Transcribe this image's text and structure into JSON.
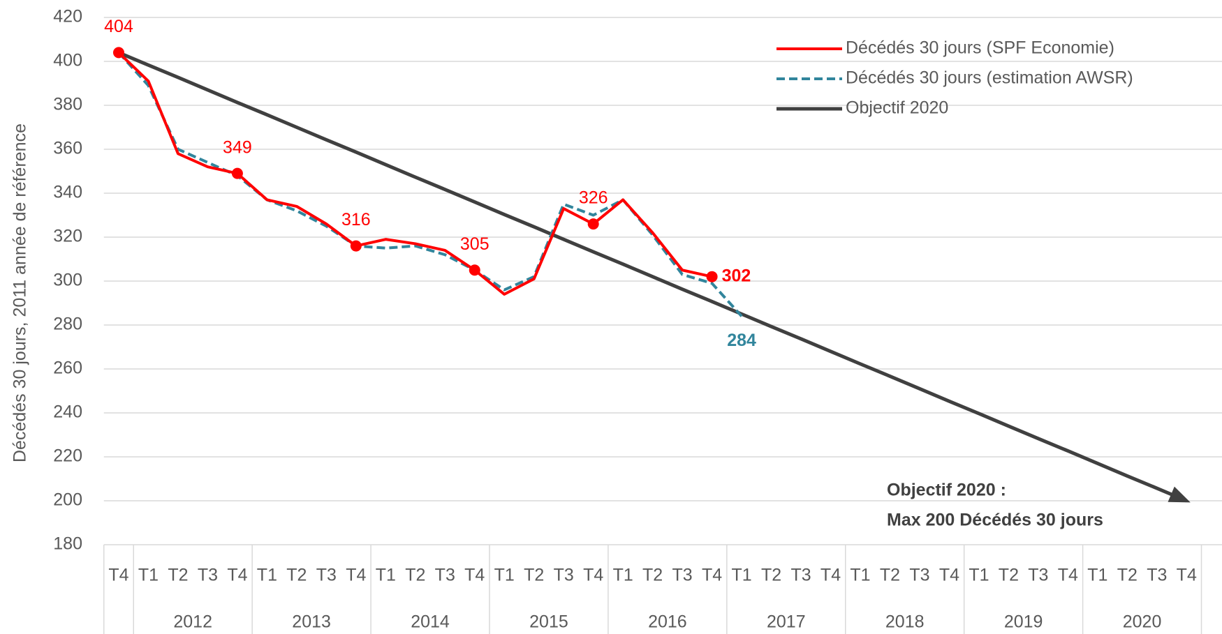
{
  "chart_data": {
    "type": "line",
    "y_label": "Décédés 30 jours, 2011 année de référence",
    "categories": [
      "T4",
      "T1",
      "T2",
      "T3",
      "T4",
      "T1",
      "T2",
      "T3",
      "T4",
      "T1",
      "T2",
      "T3",
      "T4",
      "T1",
      "T2",
      "T3",
      "T4",
      "T1",
      "T2",
      "T3",
      "T4",
      "T1",
      "T2",
      "T3",
      "T4",
      "T1",
      "T2",
      "T3",
      "T4",
      "T1",
      "T2",
      "T3",
      "T4",
      "T1",
      "T2",
      "T3",
      "T4"
    ],
    "years": [
      "2012",
      "2013",
      "2014",
      "2015",
      "2016",
      "2017",
      "2018",
      "2019",
      "2020"
    ],
    "series": [
      {
        "name": "Décédés 30 jours (SPF Economie)",
        "color": "#ff0000",
        "dash": false,
        "values": [
          404,
          391,
          358,
          352,
          349,
          337,
          334,
          326,
          316,
          319,
          317,
          314,
          305,
          294,
          301,
          333,
          326,
          337,
          322,
          305,
          302,
          null,
          null,
          null,
          null,
          null,
          null,
          null,
          null,
          null,
          null,
          null,
          null,
          null,
          null,
          null,
          null
        ],
        "value_labels": [
          "404",
          null,
          null,
          null,
          "349",
          null,
          null,
          null,
          "316",
          null,
          null,
          null,
          "305",
          null,
          null,
          null,
          "326",
          null,
          null,
          null,
          "302",
          null,
          null,
          null,
          null,
          null,
          null,
          null,
          null,
          null,
          null,
          null,
          null,
          null,
          null,
          null,
          null
        ]
      },
      {
        "name": "Décédés 30 jours (estimation AWSR)",
        "color": "#31859c",
        "dash": true,
        "values": [
          404,
          389,
          360,
          354,
          348,
          337,
          332,
          325,
          316,
          315,
          316,
          312,
          305,
          296,
          302,
          335,
          330,
          337,
          321,
          303,
          299,
          284,
          null,
          null,
          null,
          null,
          null,
          null,
          null,
          null,
          null,
          null,
          null,
          null,
          null,
          null,
          null
        ],
        "value_labels": [
          null,
          null,
          null,
          null,
          null,
          null,
          null,
          null,
          null,
          null,
          null,
          null,
          null,
          null,
          null,
          null,
          null,
          null,
          null,
          null,
          null,
          "284",
          null,
          null,
          null,
          null,
          null,
          null,
          null,
          null,
          null,
          null,
          null,
          null,
          null,
          null,
          null
        ]
      },
      {
        "name": "Objectif 2020",
        "color": "#404040",
        "dash": false,
        "values": [
          404,
          398.3,
          392.7,
          387,
          381.3,
          375.7,
          370,
          364.3,
          358.7,
          353,
          347.3,
          341.7,
          336,
          330.3,
          324.7,
          319,
          313.3,
          307.7,
          302,
          296.3,
          290.7,
          285,
          279.3,
          273.7,
          268,
          262.3,
          256.7,
          251,
          245.3,
          239.7,
          234,
          228.3,
          222.7,
          217,
          211.3,
          205.7,
          200
        ]
      }
    ],
    "annotation": [
      "Objectif 2020 :",
      "Max 200 Décédés 30 jours"
    ],
    "ylim": [
      180,
      420
    ],
    "yticks": [
      180,
      200,
      220,
      240,
      260,
      280,
      300,
      320,
      340,
      360,
      380,
      400,
      420
    ],
    "grid": true
  }
}
